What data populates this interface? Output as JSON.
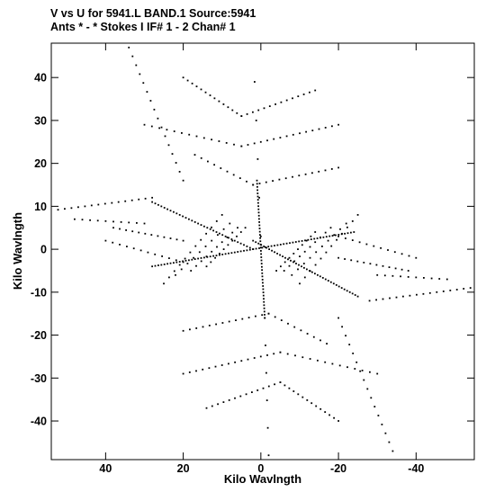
{
  "header": {
    "line1": "V vs U for 5941.L BAND.1   Source:5941",
    "line2": "Ants * - *    Stokes I  IF# 1 - 2  Chan# 1"
  },
  "chart_data": {
    "type": "scatter",
    "xlabel": "Kilo Wavlngth",
    "ylabel": "Kilo Wavlngth",
    "xlim": [
      54,
      -55
    ],
    "ylim": [
      -49,
      48
    ],
    "x_reversed": true,
    "x_ticks": [
      40,
      20,
      0,
      -20,
      -40
    ],
    "x_tick_labels": [
      "40",
      "20",
      "0",
      "-20",
      "-40"
    ],
    "y_ticks": [
      40,
      30,
      20,
      10,
      0,
      -10,
      -20,
      -30,
      -40
    ],
    "y_tick_labels": [
      "40",
      "30",
      "20",
      "10",
      "0",
      "-10",
      "-20",
      "-30",
      "-40"
    ],
    "grid": false,
    "marker_color": "#000000",
    "series": [
      {
        "description": "uv-coverage tracks (each baseline plus its conjugate)",
        "tracks": [
          {
            "u0": 34,
            "v0": 47,
            "u1": 20,
            "v1": 16,
            "n": 16
          },
          {
            "u0": 20,
            "v0": 40,
            "u1": 5,
            "v1": 31,
            "n": 14
          },
          {
            "u0": 5,
            "v0": 31,
            "u1": -14,
            "v1": 37,
            "n": 14
          },
          {
            "u0": 30,
            "v0": 29,
            "u1": 5,
            "v1": 24,
            "n": 14
          },
          {
            "u0": 5,
            "v0": 24,
            "u1": -20,
            "v1": 29,
            "n": 16
          },
          {
            "u0": 17,
            "v0": 22,
            "u1": 2,
            "v1": 15,
            "n": 10
          },
          {
            "u0": 2,
            "v0": 15,
            "u1": -20,
            "v1": 19,
            "n": 14
          },
          {
            "u0": 54,
            "v0": 9,
            "u1": 28,
            "v1": 12,
            "n": 16
          },
          {
            "u0": 48,
            "v0": 7,
            "u1": 30,
            "v1": 6,
            "n": 10
          },
          {
            "u0": 40,
            "v0": 2,
            "u1": 20,
            "v1": -3,
            "n": 12
          },
          {
            "u0": 38,
            "v0": 5,
            "u1": 20,
            "v1": 2,
            "n": 12
          },
          {
            "u0": 28,
            "v0": 11,
            "u1": 2,
            "v1": 0,
            "n": 34
          },
          {
            "u0": 28,
            "v0": -4,
            "u1": 2,
            "v1": 0,
            "n": 34
          },
          {
            "u0": 2,
            "v0": 48,
            "u1": 0,
            "v1": 3,
            "n": 6
          },
          {
            "u0": 1,
            "v0": 16,
            "u1": -1,
            "v1": -16,
            "n": 44
          },
          {
            "u0": 2,
            "v0": 2,
            "u1": -25,
            "v1": -11,
            "n": 40
          },
          {
            "u0": 2,
            "v0": 0,
            "u1": -24,
            "v1": 4,
            "n": 34
          },
          {
            "u0": -54,
            "v0": -9,
            "u1": -28,
            "v1": -12,
            "n": 16
          },
          {
            "u0": -48,
            "v0": -7,
            "u1": -30,
            "v1": -6,
            "n": 10
          },
          {
            "u0": -40,
            "v0": -2,
            "u1": -20,
            "v1": 3,
            "n": 12
          },
          {
            "u0": -38,
            "v0": -5,
            "u1": -20,
            "v1": -2,
            "n": 12
          },
          {
            "u0": -34,
            "v0": -47,
            "u1": -20,
            "v1": -16,
            "n": 16
          },
          {
            "u0": -20,
            "v0": -40,
            "u1": -5,
            "v1": -31,
            "n": 14
          },
          {
            "u0": -5,
            "v0": -31,
            "u1": 14,
            "v1": -37,
            "n": 14
          },
          {
            "u0": -30,
            "v0": -29,
            "u1": -5,
            "v1": -24,
            "n": 14
          },
          {
            "u0": -5,
            "v0": -24,
            "u1": 20,
            "v1": -29,
            "n": 16
          },
          {
            "u0": -17,
            "v0": -22,
            "u1": -2,
            "v1": -15,
            "n": 10
          },
          {
            "u0": -2,
            "v0": -15,
            "u1": 20,
            "v1": -19,
            "n": 14
          },
          {
            "u0": -1,
            "v0": -16,
            "u1": -2,
            "v1": -48,
            "n": 6
          },
          {
            "u0": 25,
            "v0": -8,
            "u1": 10,
            "v1": 8,
            "n": 12
          },
          {
            "u0": 22,
            "v0": -6,
            "u1": 8,
            "v1": 6,
            "n": 10
          },
          {
            "u0": 18,
            "v0": -5,
            "u1": 6,
            "v1": 5,
            "n": 10
          },
          {
            "u0": 14,
            "v0": -4,
            "u1": 4,
            "v1": 5,
            "n": 10
          },
          {
            "u0": -25,
            "v0": 8,
            "u1": -10,
            "v1": -8,
            "n": 12
          },
          {
            "u0": -22,
            "v0": 6,
            "u1": -8,
            "v1": -6,
            "n": 10
          },
          {
            "u0": -18,
            "v0": 5,
            "u1": -6,
            "v1": -5,
            "n": 10
          },
          {
            "u0": -14,
            "v0": 4,
            "u1": -4,
            "v1": -5,
            "n": 10
          }
        ]
      }
    ]
  }
}
